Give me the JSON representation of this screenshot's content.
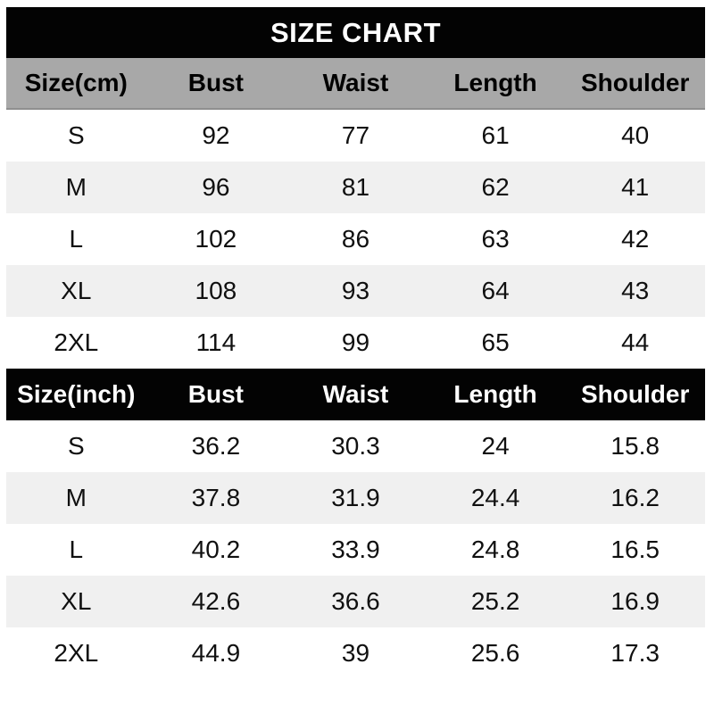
{
  "title": "SIZE CHART",
  "colors": {
    "title_bar_bg": "#030303",
    "title_text": "#ffffff",
    "cm_header_bg": "#a8a8a8",
    "inch_header_bg": "#030303",
    "zebra_row_bg": "#f0f0f0",
    "data_text": "#101010",
    "page_bg": "#ffffff"
  },
  "chart_data": {
    "type": "table",
    "title": "SIZE CHART",
    "sections": [
      {
        "unit": "cm",
        "columns": [
          "Size(cm)",
          "Bust",
          "Waist",
          "Length",
          "Shoulder"
        ],
        "rows": [
          [
            "S",
            "92",
            "77",
            "61",
            "40"
          ],
          [
            "M",
            "96",
            "81",
            "62",
            "41"
          ],
          [
            "L",
            "102",
            "86",
            "63",
            "42"
          ],
          [
            "XL",
            "108",
            "93",
            "64",
            "43"
          ],
          [
            "2XL",
            "114",
            "99",
            "65",
            "44"
          ]
        ]
      },
      {
        "unit": "inch",
        "columns": [
          "Size(inch)",
          "Bust",
          "Waist",
          "Length",
          "Shoulder"
        ],
        "rows": [
          [
            "S",
            "36.2",
            "30.3",
            "24",
            "15.8"
          ],
          [
            "M",
            "37.8",
            "31.9",
            "24.4",
            "16.2"
          ],
          [
            "L",
            "40.2",
            "33.9",
            "24.8",
            "16.5"
          ],
          [
            "XL",
            "42.6",
            "36.6",
            "25.2",
            "16.9"
          ],
          [
            "2XL",
            "44.9",
            "39",
            "25.6",
            "17.3"
          ]
        ]
      }
    ]
  }
}
